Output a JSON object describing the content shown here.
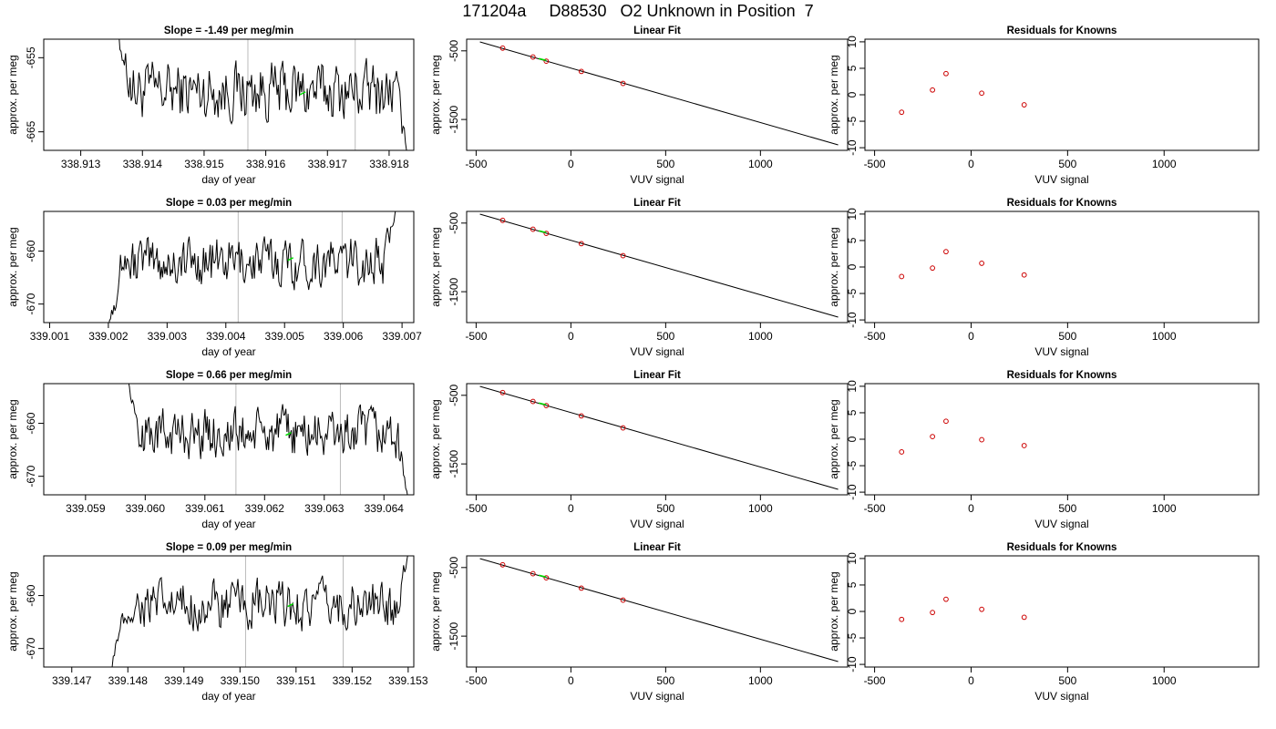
{
  "title": "171204a     D88530   O2 Unknown in Position  7",
  "colors": {
    "trace": "#000000",
    "marker": "#00dd00",
    "residual": "#cc0000",
    "vline": "#bbbbbb"
  },
  "chart_data": [
    {
      "type": "line",
      "title": "Slope =  -1.49  per meg/min",
      "xlabel": "day of year",
      "ylabel": "approx. per meg",
      "xlim": [
        338.9124,
        338.9184
      ],
      "ylim": [
        -667.5,
        -652.5
      ],
      "xticks": [
        "338.913",
        "338.914",
        "338.915",
        "338.916",
        "338.917",
        "338.918"
      ],
      "yticks": [
        "-655",
        "-665"
      ],
      "ytick_values": [
        -655,
        -665
      ],
      "vlines": [
        338.91571,
        338.91745
      ],
      "trace_range": [
        338.9136,
        338.9183
      ],
      "trace_start": -652.0,
      "trace_end": -668.0,
      "trace_mean": -659.5,
      "trace_amp": 2.2,
      "marker": {
        "x": 338.9166,
        "y": -659.8
      }
    },
    {
      "type": "line",
      "title": "Slope =  0.03  per meg/min",
      "xlabel": "day of year",
      "ylabel": "approx. per meg",
      "xlim": [
        339.0009,
        339.0072
      ],
      "ylim": [
        -673.5,
        -652.5
      ],
      "xticks": [
        "339.001",
        "339.002",
        "339.003",
        "339.004",
        "339.005",
        "339.006",
        "339.007"
      ],
      "yticks": [
        "-660",
        "-670"
      ],
      "ytick_values": [
        -660,
        -670
      ],
      "vlines": [
        339.00421,
        339.00598
      ],
      "trace_range": [
        339.002,
        339.0069
      ],
      "trace_start": -674.0,
      "trace_end": -652.0,
      "trace_mean": -662.0,
      "trace_amp": 2.6,
      "marker": {
        "x": 339.0051,
        "y": -661.5
      }
    },
    {
      "type": "line",
      "title": "Slope =  0.66  per meg/min",
      "xlabel": "day of year",
      "ylabel": "approx. per meg",
      "xlim": [
        339.0583,
        339.0645
      ],
      "ylim": [
        -673.5,
        -652.5
      ],
      "xticks": [
        "339.059",
        "339.060",
        "339.061",
        "339.062",
        "339.063",
        "339.064"
      ],
      "yticks": [
        "-660",
        "-670"
      ],
      "ytick_values": [
        -660,
        -670
      ],
      "vlines": [
        339.06152,
        339.06327
      ],
      "trace_range": [
        339.0597,
        339.0644
      ],
      "trace_start": -652.0,
      "trace_end": -674.0,
      "trace_mean": -662.0,
      "trace_amp": 2.6,
      "marker": {
        "x": 339.0624,
        "y": -662.0
      }
    },
    {
      "type": "line",
      "title": "Slope =  0.09  per meg/min",
      "xlabel": "day of year",
      "ylabel": "approx. per meg",
      "xlim": [
        339.1465,
        339.1531
      ],
      "ylim": [
        -673.5,
        -652.5
      ],
      "xticks": [
        "339.147",
        "339.148",
        "339.149",
        "339.150",
        "339.151",
        "339.152",
        "339.153"
      ],
      "yticks": [
        "-660",
        "-670"
      ],
      "ytick_values": [
        -660,
        -670
      ],
      "vlines": [
        339.1501,
        339.15184
      ],
      "trace_range": [
        339.1477,
        339.153
      ],
      "trace_start": -674.0,
      "trace_end": -652.0,
      "trace_mean": -662.0,
      "trace_amp": 2.6,
      "marker": {
        "x": 339.1509,
        "y": -661.8
      }
    },
    {
      "type": "scatter",
      "title": "Linear Fit",
      "xlabel": "VUV signal",
      "ylabel": "approx. per meg",
      "xlim": [
        -550,
        1460
      ],
      "ylim": [
        -1950,
        -330
      ],
      "xticks": [
        "-500",
        "0",
        "500",
        "1000"
      ],
      "xtick_values": [
        -500,
        0,
        500,
        1000
      ],
      "yticks": [
        "-500",
        "-1500"
      ],
      "ytick_values": [
        -500,
        -1500
      ],
      "fit_line": {
        "x": [
          -480,
          1410
        ],
        "y": [
          -370,
          -1870
        ]
      },
      "points": {
        "x": [
          -360,
          -200,
          -130,
          55,
          275
        ],
        "y": [
          -460,
          -590,
          -650,
          -800,
          -975
        ]
      },
      "marker": {
        "x": -150,
        "y": -625
      }
    },
    {
      "type": "scatter",
      "title": "Linear Fit",
      "xlabel": "VUV signal",
      "ylabel": "approx. per meg",
      "xlim": [
        -550,
        1460
      ],
      "ylim": [
        -1950,
        -330
      ],
      "xticks": [
        "-500",
        "0",
        "500",
        "1000"
      ],
      "xtick_values": [
        -500,
        0,
        500,
        1000
      ],
      "yticks": [
        "-500",
        "-1500"
      ],
      "ytick_values": [
        -500,
        -1500
      ],
      "fit_line": {
        "x": [
          -480,
          1410
        ],
        "y": [
          -370,
          -1870
        ]
      },
      "points": {
        "x": [
          -360,
          -200,
          -130,
          55,
          275
        ],
        "y": [
          -460,
          -590,
          -650,
          -800,
          -975
        ]
      },
      "marker": {
        "x": -150,
        "y": -625
      }
    },
    {
      "type": "scatter",
      "title": "Linear Fit",
      "xlabel": "VUV signal",
      "ylabel": "approx. per meg",
      "xlim": [
        -550,
        1460
      ],
      "ylim": [
        -1950,
        -330
      ],
      "xticks": [
        "-500",
        "0",
        "500",
        "1000"
      ],
      "xtick_values": [
        -500,
        0,
        500,
        1000
      ],
      "yticks": [
        "-500",
        "-1500"
      ],
      "ytick_values": [
        -500,
        -1500
      ],
      "fit_line": {
        "x": [
          -480,
          1410
        ],
        "y": [
          -370,
          -1870
        ]
      },
      "points": {
        "x": [
          -360,
          -200,
          -130,
          55,
          275
        ],
        "y": [
          -460,
          -590,
          -650,
          -800,
          -975
        ]
      },
      "marker": {
        "x": -150,
        "y": -625
      }
    },
    {
      "type": "scatter",
      "title": "Linear Fit",
      "xlabel": "VUV signal",
      "ylabel": "approx. per meg",
      "xlim": [
        -550,
        1460
      ],
      "ylim": [
        -1950,
        -330
      ],
      "xticks": [
        "-500",
        "0",
        "500",
        "1000"
      ],
      "xtick_values": [
        -500,
        0,
        500,
        1000
      ],
      "yticks": [
        "-500",
        "-1500"
      ],
      "ytick_values": [
        -500,
        -1500
      ],
      "fit_line": {
        "x": [
          -480,
          1410
        ],
        "y": [
          -370,
          -1870
        ]
      },
      "points": {
        "x": [
          -360,
          -200,
          -130,
          55,
          275
        ],
        "y": [
          -460,
          -590,
          -650,
          -800,
          -975
        ]
      },
      "marker": {
        "x": -150,
        "y": -625
      }
    },
    {
      "type": "scatter",
      "title": "Residuals for Knowns",
      "xlabel": "VUV signal",
      "ylabel": "approx. per meg",
      "xlim": [
        -550,
        1490
      ],
      "ylim": [
        -10.5,
        10.5
      ],
      "xticks": [
        "-500",
        "0",
        "500",
        "1000"
      ],
      "xtick_values": [
        -500,
        0,
        500,
        1000
      ],
      "yticks": [
        "-10",
        "-5",
        "0",
        "5",
        "10"
      ],
      "ytick_values": [
        -10,
        -5,
        0,
        5,
        10
      ],
      "points": {
        "x": [
          -360,
          -200,
          -130,
          55,
          275
        ],
        "y": [
          -3.3,
          0.9,
          4.0,
          0.3,
          -1.9
        ]
      }
    },
    {
      "type": "scatter",
      "title": "Residuals for Knowns",
      "xlabel": "VUV signal",
      "ylabel": "approx. per meg",
      "xlim": [
        -550,
        1490
      ],
      "ylim": [
        -10.5,
        10.5
      ],
      "xticks": [
        "-500",
        "0",
        "500",
        "1000"
      ],
      "xtick_values": [
        -500,
        0,
        500,
        1000
      ],
      "yticks": [
        "-10",
        "-5",
        "0",
        "5",
        "10"
      ],
      "ytick_values": [
        -10,
        -5,
        0,
        5,
        10
      ],
      "points": {
        "x": [
          -360,
          -200,
          -130,
          55,
          275
        ],
        "y": [
          -1.8,
          -0.2,
          2.9,
          0.7,
          -1.5
        ]
      }
    },
    {
      "type": "scatter",
      "title": "Residuals for Knowns",
      "xlabel": "VUV signal",
      "ylabel": "approx. per meg",
      "xlim": [
        -550,
        1490
      ],
      "ylim": [
        -10.5,
        10.5
      ],
      "xticks": [
        "-500",
        "0",
        "500",
        "1000"
      ],
      "xtick_values": [
        -500,
        0,
        500,
        1000
      ],
      "yticks": [
        "-10",
        "-5",
        "0",
        "5",
        "10"
      ],
      "ytick_values": [
        -10,
        -5,
        0,
        5,
        10
      ],
      "points": {
        "x": [
          -360,
          -200,
          -130,
          55,
          275
        ],
        "y": [
          -2.4,
          0.5,
          3.4,
          -0.1,
          -1.2
        ]
      }
    },
    {
      "type": "scatter",
      "title": "Residuals for Knowns",
      "xlabel": "VUV signal",
      "ylabel": "approx. per meg",
      "xlim": [
        -550,
        1490
      ],
      "ylim": [
        -10.5,
        10.5
      ],
      "xticks": [
        "-500",
        "0",
        "500",
        "1000"
      ],
      "xtick_values": [
        -500,
        0,
        500,
        1000
      ],
      "yticks": [
        "-10",
        "-5",
        "0",
        "5",
        "10"
      ],
      "ytick_values": [
        -10,
        -5,
        0,
        5,
        10
      ],
      "points": {
        "x": [
          -360,
          -200,
          -130,
          55,
          275
        ],
        "y": [
          -1.5,
          -0.2,
          2.3,
          0.4,
          -1.1
        ]
      }
    }
  ]
}
